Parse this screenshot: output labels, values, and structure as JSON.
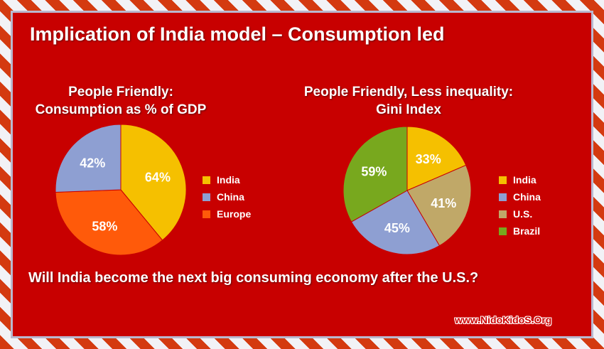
{
  "title": "Implication of India model – Consumption led",
  "question": "Will India become the next  big consuming economy after the U.S.?",
  "watermark": "www.NidoKidoS.Org",
  "chart_data": [
    {
      "type": "pie",
      "title_line1": "People Friendly:",
      "title_line2": "Consumption as % of GDP",
      "categories": [
        "India",
        "China",
        "Europe"
      ],
      "values": [
        64,
        42,
        58
      ],
      "labels": [
        "64%",
        "42%",
        "58%"
      ],
      "colors": [
        "#f5c000",
        "#8e9fd2",
        "#ff5a0a"
      ],
      "slice_order": [
        0,
        2,
        1
      ],
      "legend": "right"
    },
    {
      "type": "pie",
      "title_line1": "People Friendly, Less inequality:",
      "title_line2": "Gini Index",
      "categories": [
        "India",
        "China",
        "U.S.",
        "Brazil"
      ],
      "values": [
        33,
        45,
        41,
        59
      ],
      "labels": [
        "33%",
        "45%",
        "41%",
        "59%"
      ],
      "colors": [
        "#f5c000",
        "#8e9fd2",
        "#c0a868",
        "#78a81e"
      ],
      "slice_order": [
        0,
        2,
        1,
        3
      ],
      "legend": "right"
    }
  ]
}
